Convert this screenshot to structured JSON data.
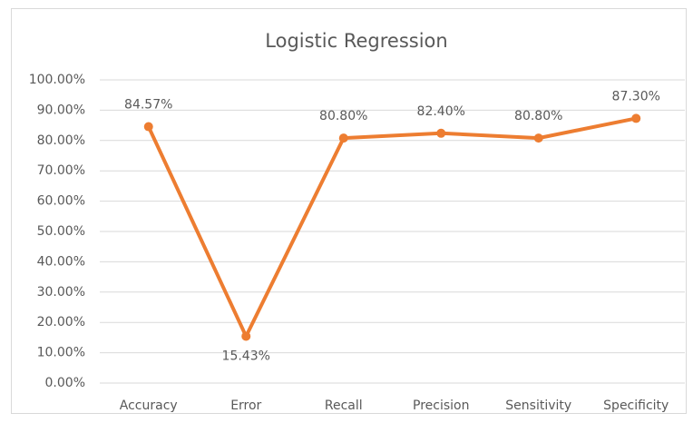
{
  "chart_data": {
    "type": "line",
    "title": "Logistic Regression",
    "categories": [
      "Accuracy",
      "Error",
      "Recall",
      "Precision",
      "Sensitivity",
      "Specificity"
    ],
    "series": [
      {
        "name": "Logistic Regression",
        "color": "#ed7d31",
        "values": [
          84.57,
          15.43,
          80.8,
          82.4,
          80.8,
          87.3
        ],
        "value_labels": [
          "84.57%",
          "15.43%",
          "80.80%",
          "82.40%",
          "80.80%",
          "87.30%"
        ]
      }
    ],
    "ylim": [
      0,
      100
    ],
    "yticks": [
      {
        "value": 0,
        "label": "0.00%"
      },
      {
        "value": 10,
        "label": "10.00%"
      },
      {
        "value": 20,
        "label": "20.00%"
      },
      {
        "value": 30,
        "label": "30.00%"
      },
      {
        "value": 40,
        "label": "40.00%"
      },
      {
        "value": 50,
        "label": "50.00%"
      },
      {
        "value": 60,
        "label": "60.00%"
      },
      {
        "value": 70,
        "label": "70.00%"
      },
      {
        "value": 80,
        "label": "80.00%"
      },
      {
        "value": 90,
        "label": "90.00%"
      },
      {
        "value": 100,
        "label": "100.00%"
      }
    ],
    "grid": true
  }
}
